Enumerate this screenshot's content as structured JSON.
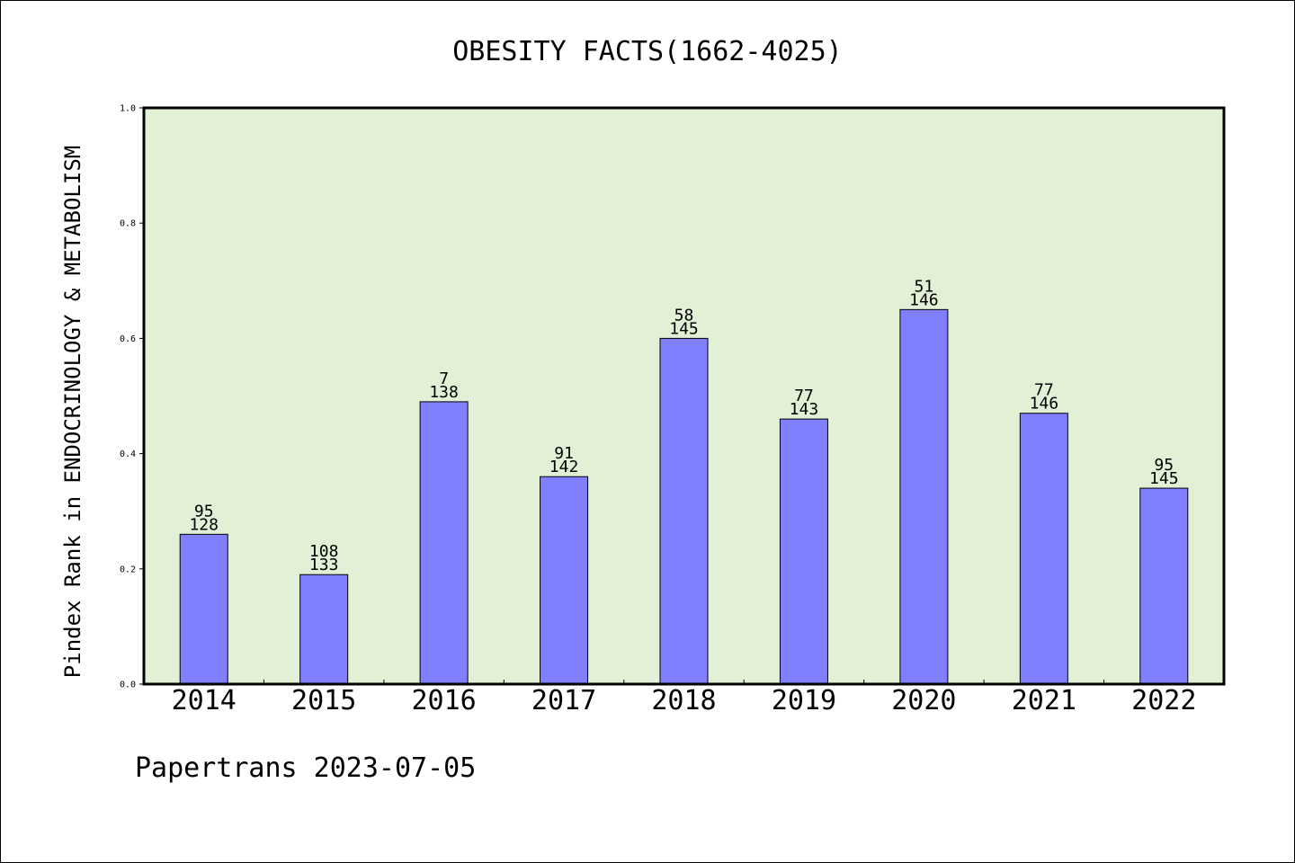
{
  "chart_data": {
    "type": "bar",
    "title": "OBESITY FACTS(1662-4025)",
    "xlabel": "",
    "ylabel": "Pindex Rank in ENDOCRINOLOGY & METABOLISM",
    "ylim": [
      0,
      1.0
    ],
    "yticks": [
      "0.0",
      "0.2",
      "0.4",
      "0.6",
      "0.8",
      "1.0"
    ],
    "grid": false,
    "categories": [
      "2014",
      "2015",
      "2016",
      "2017",
      "2018",
      "2019",
      "2020",
      "2021",
      "2022"
    ],
    "values": [
      0.26,
      0.19,
      0.49,
      0.36,
      0.6,
      0.46,
      0.65,
      0.47,
      0.34
    ],
    "rank_labels": [
      "95",
      "108",
      "7",
      "91",
      "58",
      "77",
      "51",
      "77",
      "95"
    ],
    "total_labels": [
      "128",
      "133",
      "138",
      "142",
      "145",
      "143",
      "146",
      "146",
      "145"
    ],
    "colors": {
      "bar_fill": "#8080ff",
      "plot_background": "#e2f0d6",
      "axis": "#000000"
    }
  },
  "footer": {
    "text": "Papertrans 2023-07-05"
  }
}
